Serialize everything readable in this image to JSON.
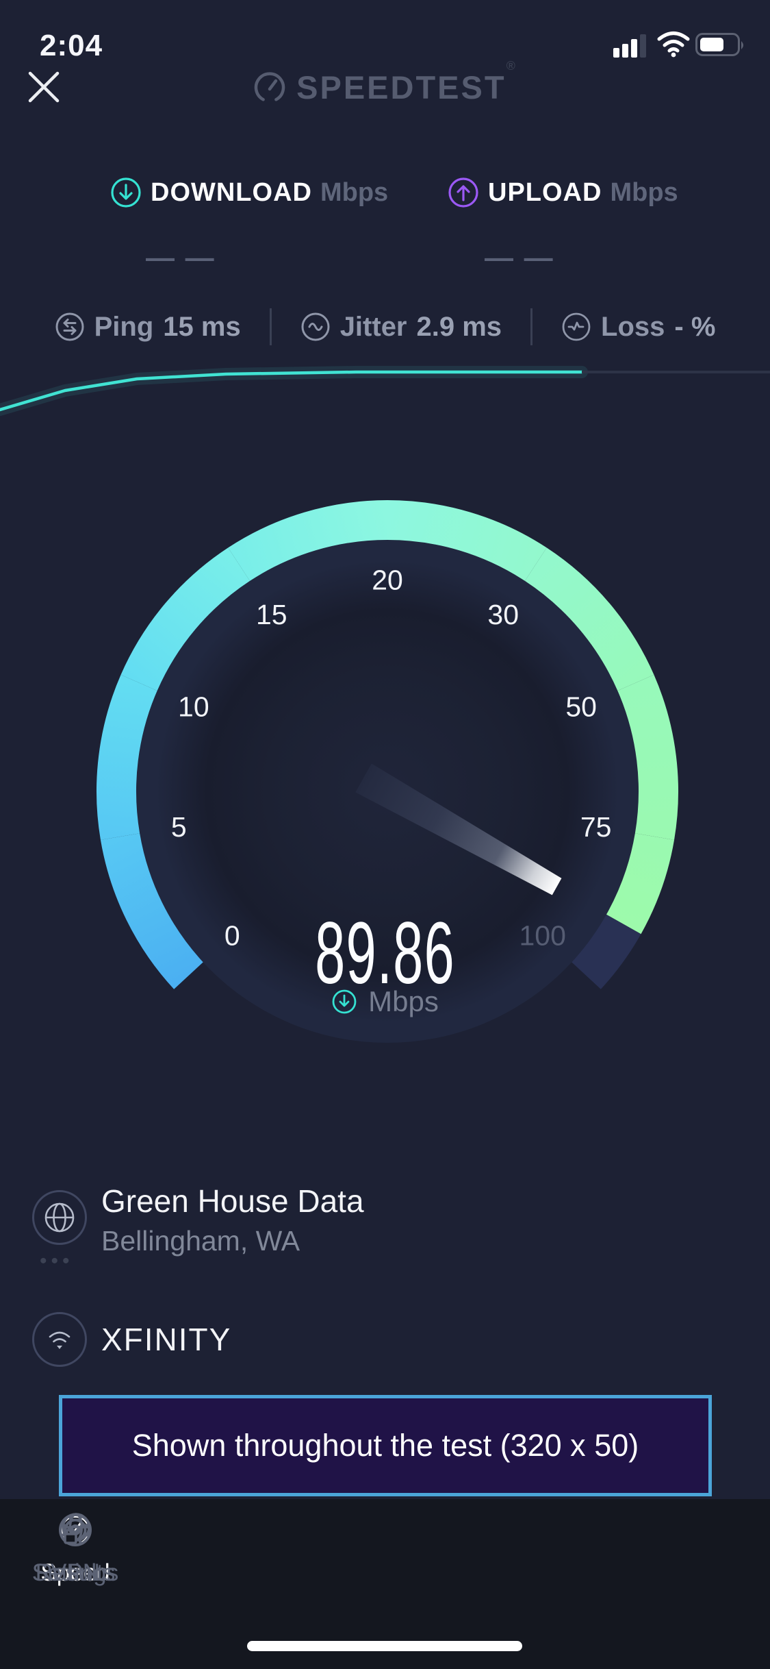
{
  "status_bar": {
    "time": "2:04"
  },
  "header": {
    "logo_text": "SPEEDTEST",
    "trademark": "®"
  },
  "result_headers": {
    "download": {
      "label": "DOWNLOAD",
      "unit": "Mbps",
      "placeholder": "— —"
    },
    "upload": {
      "label": "UPLOAD",
      "unit": "Mbps",
      "placeholder": "— —"
    }
  },
  "metrics": {
    "ping": {
      "label": "Ping",
      "value": "15 ms"
    },
    "jitter": {
      "label": "Jitter",
      "value": "2.9 ms"
    },
    "loss": {
      "label": "Loss",
      "value": "- %"
    }
  },
  "chart": {
    "line_color": "#41e3d3",
    "trail_color": "#2d3347",
    "points_main": [
      [
        0,
        598
      ],
      [
        95,
        570
      ],
      [
        200,
        553
      ],
      [
        330,
        546
      ],
      [
        520,
        543
      ],
      [
        850,
        543
      ]
    ],
    "points_trail": [
      [
        850,
        543
      ],
      [
        1125,
        543
      ]
    ]
  },
  "gauge": {
    "value": "89.86",
    "unit": "Mbps",
    "ticks": [
      "0",
      "5",
      "10",
      "15",
      "20",
      "30",
      "50",
      "75",
      "100"
    ],
    "tick_color": "#f2f4f8",
    "tick_muted_color": "#565d73",
    "ring_colors": [
      "#4bb0f2",
      "#57c8f3",
      "#63ddf2",
      "#79eee9",
      "#8df7e0",
      "#93f8cd",
      "#97f9bb",
      "#9af9b1",
      "#9dfaab"
    ],
    "remainder_color": "#293154",
    "needle_colors": [
      "#242a40",
      "#323950",
      "#555c70",
      "#cfd2d8",
      "#ffffff"
    ],
    "disc_colors": [
      "#20253a",
      "#1c2133",
      "#191d2e",
      "#212840"
    ]
  },
  "server": {
    "name": "Green House Data",
    "location": "Bellingham, WA",
    "more": "•••"
  },
  "isp": {
    "name": "XFINITY"
  },
  "ad_banner": {
    "text": "Shown throughout the test (320 x 50)"
  },
  "tab_bar": {
    "tabs": [
      {
        "label": "Speed"
      },
      {
        "label": "Results"
      },
      {
        "label": "Settings"
      },
      {
        "label": "VPN"
      }
    ]
  },
  "colors": {
    "accent_teal": "#35e2d2",
    "accent_purple": "#9b59f5",
    "background": "#1d2134",
    "tabbar_bg": "#14171f"
  }
}
